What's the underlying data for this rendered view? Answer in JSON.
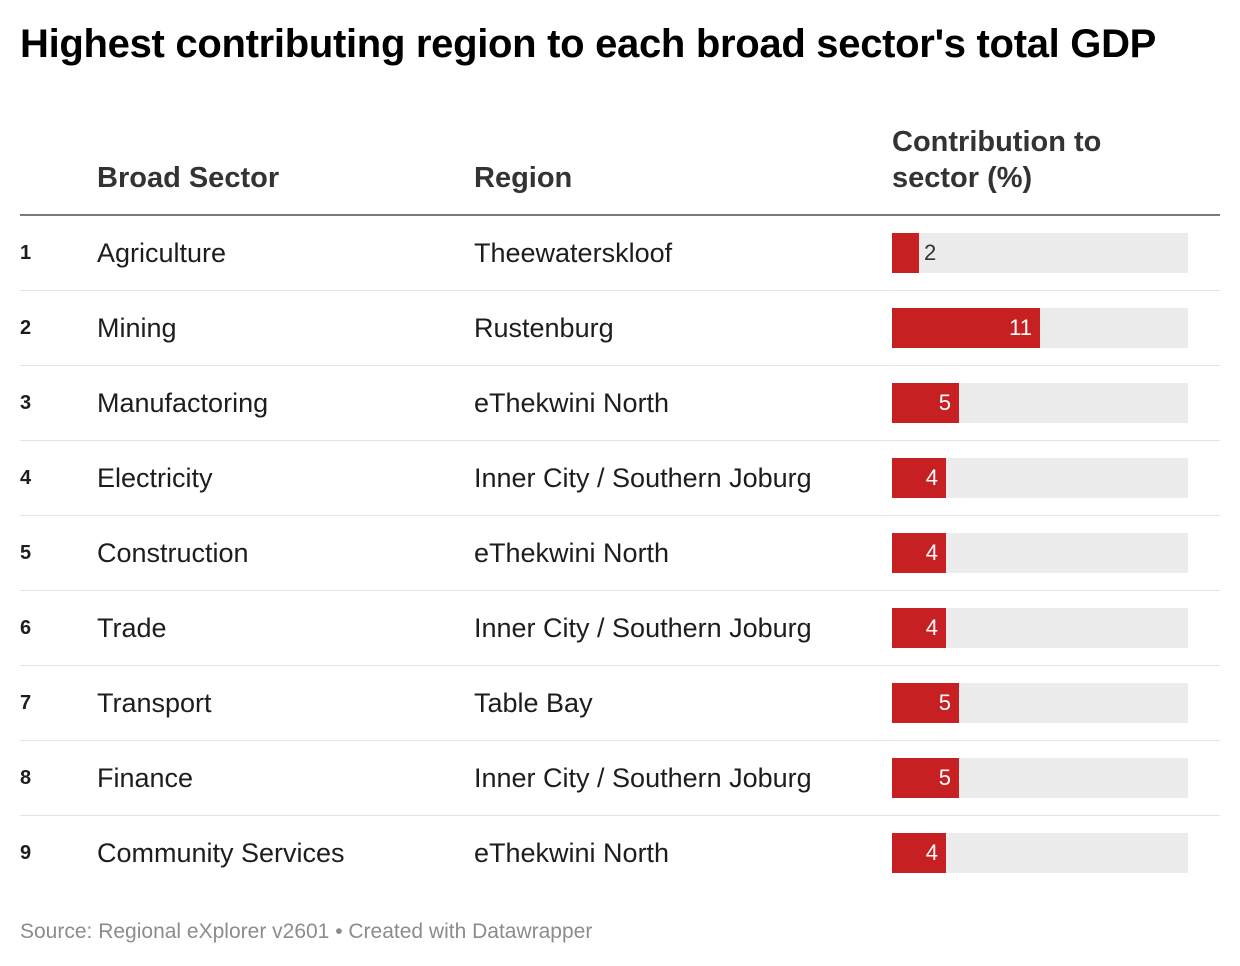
{
  "title": "Highest contributing region to each broad sector's total GDP",
  "headers": {
    "sector": "Broad Sector",
    "region": "Region",
    "contribution": "Contribution to sector (%)"
  },
  "footer": {
    "source": "Source: Regional eXplorer v2601 • Created with Datawrapper"
  },
  "colors": {
    "bar": "#c72023",
    "track": "#ececec"
  },
  "chart_data": {
    "type": "table",
    "columns": [
      "",
      "Broad Sector",
      "Region",
      "Contribution to sector (%)"
    ],
    "max_value": 22,
    "rows": [
      {
        "rank": "1",
        "sector": "Agriculture",
        "region": "Theewaterskloof",
        "value": 2
      },
      {
        "rank": "2",
        "sector": "Mining",
        "region": "Rustenburg",
        "value": 11
      },
      {
        "rank": "3",
        "sector": "Manufactoring",
        "region": "eThekwini North",
        "value": 5
      },
      {
        "rank": "4",
        "sector": "Electricity",
        "region": "Inner City / Southern Joburg",
        "value": 4
      },
      {
        "rank": "5",
        "sector": "Construction",
        "region": "eThekwini North",
        "value": 4
      },
      {
        "rank": "6",
        "sector": "Trade",
        "region": "Inner City / Southern Joburg",
        "value": 4
      },
      {
        "rank": "7",
        "sector": "Transport",
        "region": "Table Bay",
        "value": 5
      },
      {
        "rank": "8",
        "sector": "Finance",
        "region": "Inner City / Southern Joburg",
        "value": 5
      },
      {
        "rank": "9",
        "sector": "Community Services",
        "region": "eThekwini North",
        "value": 4
      }
    ]
  }
}
